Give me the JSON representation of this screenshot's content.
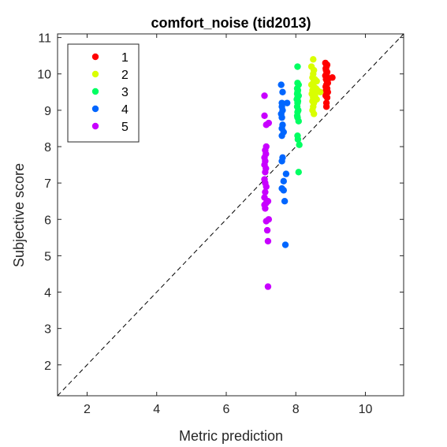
{
  "chart_data": {
    "type": "scatter",
    "title": "comfort_noise (tid2013)",
    "xlabel": "Metric prediction",
    "ylabel": "Subjective score",
    "xlim": [
      1.15,
      11.1
    ],
    "ylim": [
      1.15,
      11.1
    ],
    "xticks": [
      2,
      4,
      6,
      8,
      10
    ],
    "yticks": [
      2,
      3,
      4,
      5,
      6,
      7,
      8,
      9,
      10,
      11
    ],
    "grid": false,
    "legend_position": "top-left",
    "reference_line": {
      "style": "dashed",
      "from": [
        1.15,
        1.15
      ],
      "to": [
        11.1,
        11.1
      ]
    },
    "series": [
      {
        "name": "1",
        "color": "#ff0000",
        "points": [
          [
            8.85,
            10.3
          ],
          [
            8.9,
            10.25
          ],
          [
            8.88,
            10.2
          ],
          [
            8.86,
            10.15
          ],
          [
            8.87,
            10.1
          ],
          [
            8.9,
            10.05
          ],
          [
            8.88,
            10.0
          ],
          [
            8.85,
            9.95
          ],
          [
            8.9,
            9.9
          ],
          [
            9.05,
            9.9
          ],
          [
            8.95,
            9.88
          ],
          [
            8.87,
            9.85
          ],
          [
            8.9,
            9.8
          ],
          [
            8.92,
            9.75
          ],
          [
            8.88,
            9.7
          ],
          [
            8.86,
            9.65
          ],
          [
            8.9,
            9.6
          ],
          [
            8.87,
            9.55
          ],
          [
            8.92,
            9.5
          ],
          [
            8.88,
            9.45
          ],
          [
            8.86,
            9.4
          ],
          [
            8.9,
            9.35
          ],
          [
            8.88,
            9.2
          ],
          [
            8.88,
            9.1
          ]
        ]
      },
      {
        "name": "2",
        "color": "#d9ff00",
        "points": [
          [
            8.5,
            10.4
          ],
          [
            8.45,
            10.2
          ],
          [
            8.52,
            10.1
          ],
          [
            8.5,
            10.0
          ],
          [
            8.48,
            9.9
          ],
          [
            8.55,
            9.85
          ],
          [
            8.6,
            9.8
          ],
          [
            8.5,
            9.75
          ],
          [
            8.45,
            9.7
          ],
          [
            8.52,
            9.65
          ],
          [
            8.58,
            9.6
          ],
          [
            8.48,
            9.55
          ],
          [
            8.62,
            9.55
          ],
          [
            8.7,
            9.5
          ],
          [
            8.5,
            9.5
          ],
          [
            8.46,
            9.45
          ],
          [
            8.55,
            9.4
          ],
          [
            8.5,
            9.35
          ],
          [
            8.6,
            9.3
          ],
          [
            8.48,
            9.25
          ],
          [
            8.52,
            9.2
          ],
          [
            8.5,
            9.1
          ],
          [
            8.48,
            9.0
          ],
          [
            8.52,
            8.9
          ]
        ]
      },
      {
        "name": "3",
        "color": "#00ff62",
        "points": [
          [
            8.05,
            10.2
          ],
          [
            8.05,
            9.75
          ],
          [
            8.08,
            9.7
          ],
          [
            8.04,
            9.6
          ],
          [
            8.06,
            9.55
          ],
          [
            8.05,
            9.5
          ],
          [
            8.04,
            9.45
          ],
          [
            8.08,
            9.4
          ],
          [
            8.05,
            9.35
          ],
          [
            8.03,
            9.3
          ],
          [
            8.06,
            9.25
          ],
          [
            8.05,
            9.2
          ],
          [
            8.04,
            9.1
          ],
          [
            8.07,
            9.0
          ],
          [
            8.05,
            8.95
          ],
          [
            8.04,
            8.85
          ],
          [
            8.05,
            8.8
          ],
          [
            8.08,
            8.7
          ],
          [
            8.05,
            8.3
          ],
          [
            8.06,
            8.2
          ],
          [
            8.1,
            8.05
          ],
          [
            8.08,
            7.3
          ]
        ]
      },
      {
        "name": "4",
        "color": "#0066ff",
        "points": [
          [
            7.58,
            9.7
          ],
          [
            7.62,
            9.5
          ],
          [
            7.6,
            9.2
          ],
          [
            7.75,
            9.2
          ],
          [
            7.6,
            9.1
          ],
          [
            7.62,
            9.0
          ],
          [
            7.58,
            8.9
          ],
          [
            7.6,
            8.8
          ],
          [
            7.62,
            8.6
          ],
          [
            7.6,
            8.5
          ],
          [
            7.65,
            8.4
          ],
          [
            7.6,
            8.3
          ],
          [
            7.62,
            7.7
          ],
          [
            7.6,
            7.6
          ],
          [
            7.72,
            7.25
          ],
          [
            7.65,
            7.05
          ],
          [
            7.6,
            6.85
          ],
          [
            7.65,
            6.8
          ],
          [
            7.68,
            6.5
          ],
          [
            7.7,
            5.3
          ]
        ]
      },
      {
        "name": "5",
        "color": "#c800ff",
        "points": [
          [
            7.1,
            9.4
          ],
          [
            7.1,
            8.85
          ],
          [
            7.22,
            8.65
          ],
          [
            7.15,
            8.6
          ],
          [
            7.15,
            8.0
          ],
          [
            7.12,
            7.9
          ],
          [
            7.14,
            7.8
          ],
          [
            7.1,
            7.7
          ],
          [
            7.12,
            7.6
          ],
          [
            7.1,
            7.5
          ],
          [
            7.14,
            7.4
          ],
          [
            7.12,
            7.3
          ],
          [
            7.1,
            7.1
          ],
          [
            7.12,
            7.0
          ],
          [
            7.15,
            6.9
          ],
          [
            7.12,
            6.75
          ],
          [
            7.1,
            6.6
          ],
          [
            7.2,
            6.5
          ],
          [
            7.15,
            6.45
          ],
          [
            7.1,
            6.4
          ],
          [
            7.12,
            6.3
          ],
          [
            7.22,
            6.0
          ],
          [
            7.15,
            5.95
          ],
          [
            7.18,
            5.7
          ],
          [
            7.2,
            5.4
          ],
          [
            7.2,
            4.15
          ]
        ]
      }
    ]
  }
}
